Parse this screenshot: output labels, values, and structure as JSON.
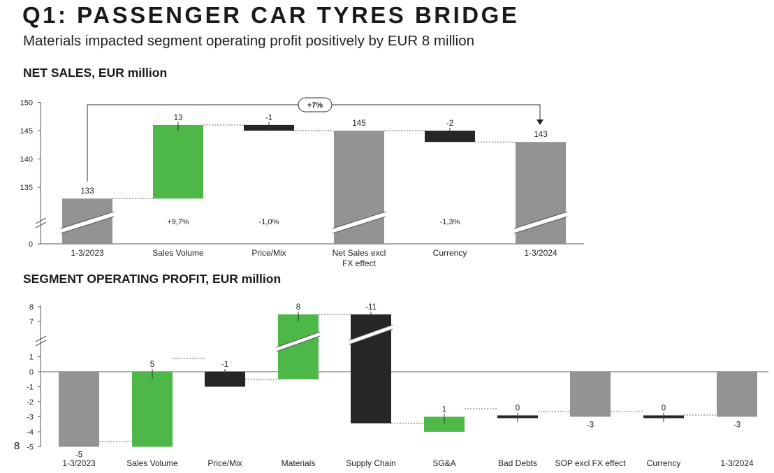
{
  "header": {
    "title": "Q1: PASSENGER CAR TYRES BRIDGE",
    "subtitle": "Materials impacted segment operating profit positively by EUR 8 million"
  },
  "page_number": "8",
  "colors": {
    "total": "#939393",
    "positive": "#4db848",
    "negative": "#262626"
  },
  "chart_data": [
    {
      "type": "bar",
      "subtype": "waterfall",
      "title": "NET SALES, EUR million",
      "yticks": [
        "0",
        "135",
        "140",
        "145",
        "150"
      ],
      "axis_break": true,
      "ylim": [
        0,
        150
      ],
      "categories": [
        "1-3/2023",
        "Sales Volume",
        "Price/Mix",
        "Net Sales excl\nFX effect",
        "Currency",
        "1-3/2024"
      ],
      "bars": [
        {
          "kind": "total",
          "value": 133,
          "label": "133",
          "pct": ""
        },
        {
          "kind": "positive",
          "value": 13,
          "label": "13",
          "pct": "+9,7%"
        },
        {
          "kind": "negative",
          "value": -1,
          "label": "-1",
          "pct": "-1,0%"
        },
        {
          "kind": "total",
          "value": 145,
          "label": "145",
          "pct": ""
        },
        {
          "kind": "negative",
          "value": -2,
          "label": "-2",
          "pct": "-1,3%"
        },
        {
          "kind": "total",
          "value": 143,
          "label": "143",
          "pct": ""
        }
      ],
      "annotation": "+7%"
    },
    {
      "type": "bar",
      "subtype": "waterfall",
      "title": "SEGMENT OPERATING PROFIT, EUR million",
      "yticks": [
        "-5",
        "-4",
        "-3",
        "-2",
        "-1",
        "0",
        "1",
        "7",
        "8"
      ],
      "axis_break": true,
      "ylim": [
        -5,
        8
      ],
      "categories": [
        "1-3/2023",
        "Sales Volume",
        "Price/Mix",
        "Materials",
        "Supply Chain",
        "SG&A",
        "Bad Debts",
        "SOP excl FX effect",
        "Currency",
        "1-3/2024"
      ],
      "bars": [
        {
          "kind": "total",
          "value": -5,
          "label": "-5"
        },
        {
          "kind": "positive",
          "value": 5,
          "label": "5"
        },
        {
          "kind": "negative",
          "value": -1,
          "label": "-1"
        },
        {
          "kind": "positive",
          "value": 8,
          "label": "8"
        },
        {
          "kind": "negative",
          "value": -11,
          "label": "-11"
        },
        {
          "kind": "positive",
          "value": 1,
          "label": "1"
        },
        {
          "kind": "negative",
          "value": 0,
          "label": "0"
        },
        {
          "kind": "total",
          "value": -3,
          "label": "-3"
        },
        {
          "kind": "negative",
          "value": 0,
          "label": "0"
        },
        {
          "kind": "total",
          "value": -3,
          "label": "-3"
        }
      ]
    }
  ]
}
